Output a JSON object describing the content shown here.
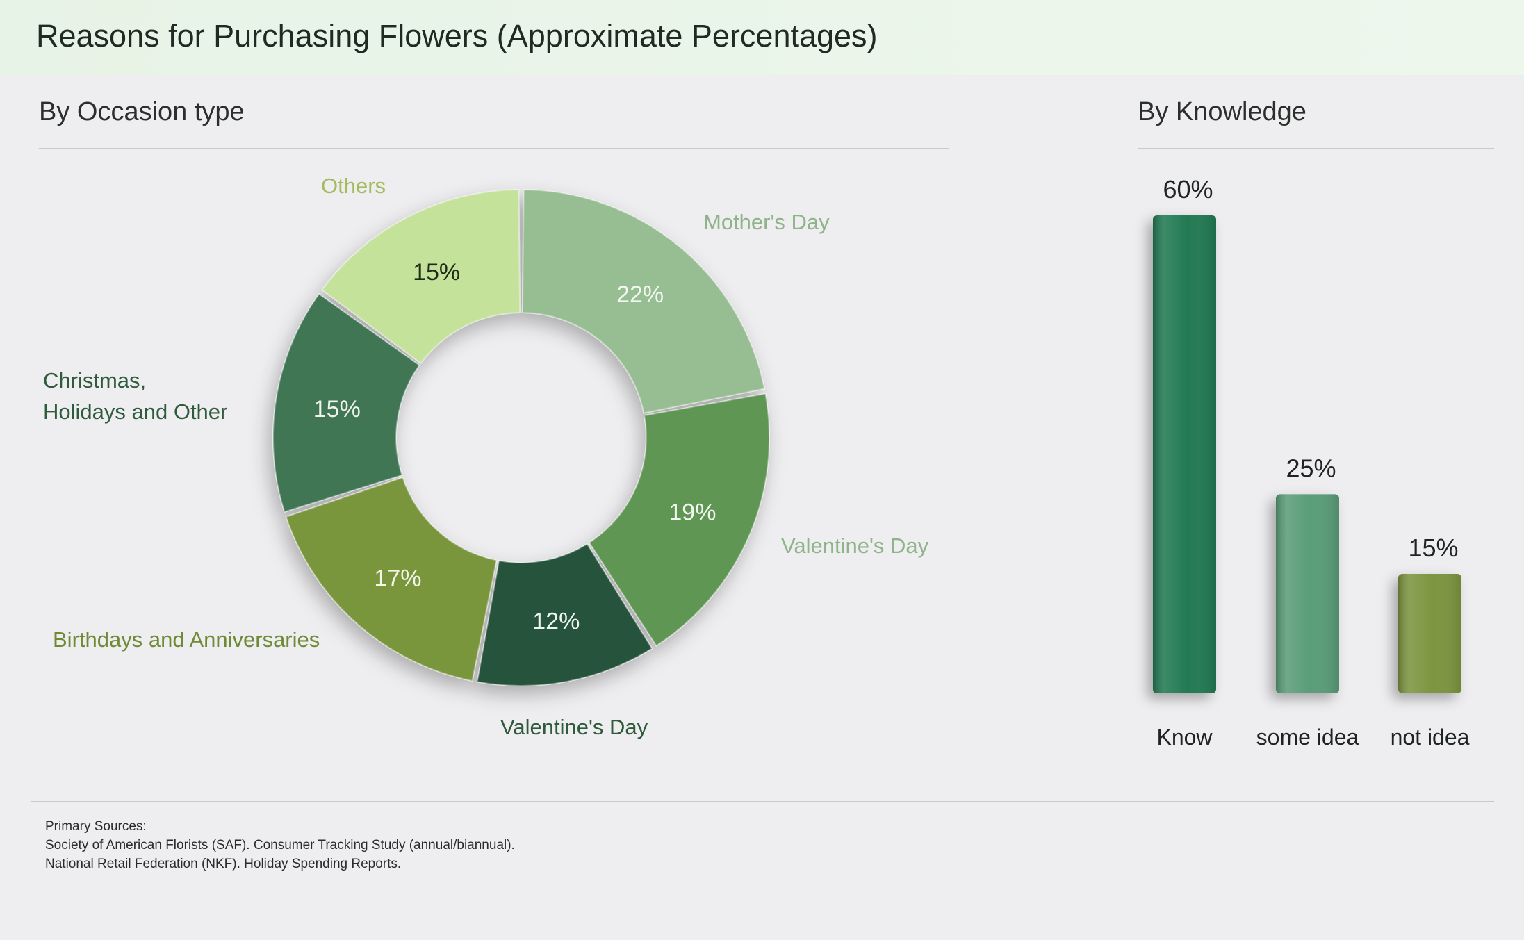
{
  "title": "Reasons for Purchasing Flowers (Approximate Percentages)",
  "sections": {
    "occasion": "By Occasion type",
    "knowledge": "By Knowledge"
  },
  "sources": {
    "heading": "Primary Sources:",
    "lines": [
      "Society of American Florists (SAF). Consumer Tracking Study (annual/biannual).",
      "National Retail Federation (NKF). Holiday Spending Reports."
    ]
  },
  "chart_data": [
    {
      "type": "pie",
      "title": "By Occasion type",
      "donut": true,
      "slices": [
        {
          "label": "Mother's Day",
          "value": 22,
          "value_label": "22%",
          "color": "#97bd92",
          "label_color": "#8fb38a",
          "text_color": "#f2f7f0"
        },
        {
          "label": "Valentine's Day",
          "value": 19,
          "value_label": "19%",
          "color": "#5f9653",
          "label_color": "#8fb38a",
          "text_color": "#f2f7f0"
        },
        {
          "label": "Valentine's Day",
          "value": 12,
          "value_label": "12%",
          "color": "#27523a",
          "label_color": "#2f5b3d",
          "text_color": "#eef4ee"
        },
        {
          "label": "Birthdays and Anniversaries",
          "value": 17,
          "value_label": "17%",
          "color": "#7a963e",
          "label_color": "#6e8a35",
          "text_color": "#f3f6ea"
        },
        {
          "label": "Christmas, Holidays and Other",
          "value": 15,
          "value_label": "15%",
          "color": "#3f7653",
          "label_color": "#2f5b3d",
          "text_color": "#eef4ee"
        },
        {
          "label": "Others",
          "value": 15,
          "value_label": "15%",
          "color": "#c4e29a",
          "label_color": "#a2bb5c",
          "text_color": "#1f2a18"
        }
      ]
    },
    {
      "type": "bar",
      "title": "By Knowledge",
      "categories": [
        "Know",
        "some idea",
        "not idea"
      ],
      "values": [
        60,
        25,
        15
      ],
      "value_labels": [
        "60%",
        "25%",
        "15%"
      ],
      "colors": [
        "#237a52",
        "#5a9d78",
        "#7c953f"
      ],
      "ylim": [
        0,
        60
      ]
    }
  ]
}
